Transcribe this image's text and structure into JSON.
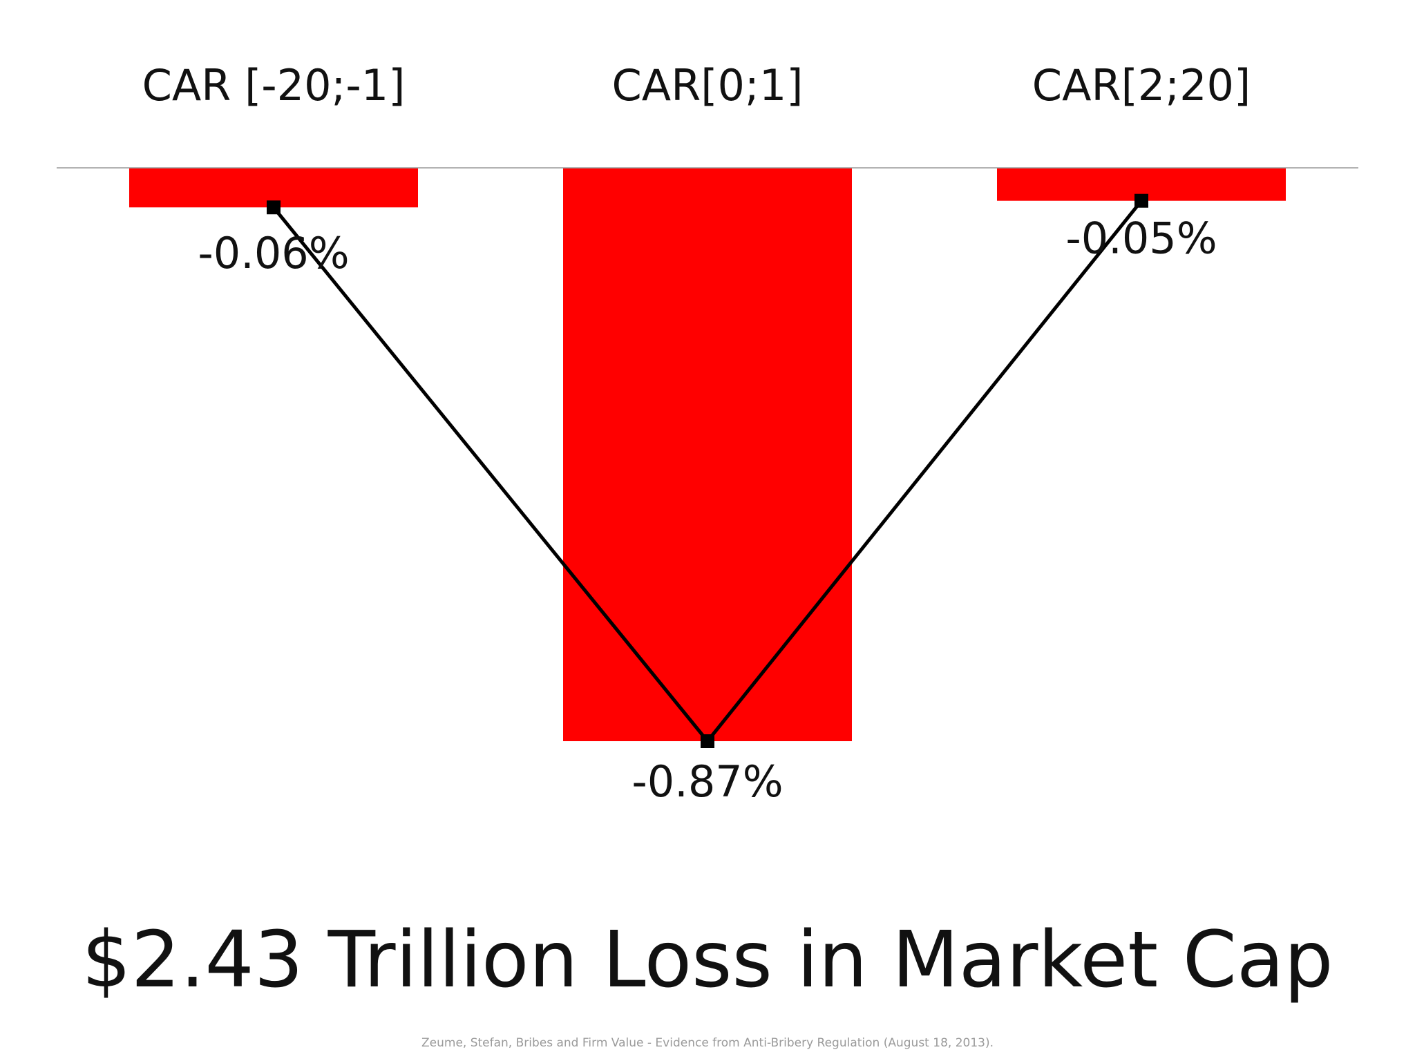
{
  "chart_data": {
    "type": "bar",
    "categories": [
      "CAR [-20;-1]",
      "CAR[0;1]",
      "CAR[2;20]"
    ],
    "values": [
      -0.06,
      -0.87,
      -0.05
    ],
    "value_labels": [
      "-0.06%",
      "-0.87%",
      "-0.05%"
    ],
    "line_overlay": true,
    "ylim": [
      -0.87,
      0
    ],
    "grid": false,
    "colors": {
      "bar": "#ff0000",
      "line": "#000000",
      "axis": "#999999",
      "marker": "#000000"
    }
  },
  "headline": "$2.43 Trillion Loss in Market Cap",
  "citation": "Zeume, Stefan, Bribes and Firm Value - Evidence from Anti-Bribery Regulation (August 18, 2013)."
}
